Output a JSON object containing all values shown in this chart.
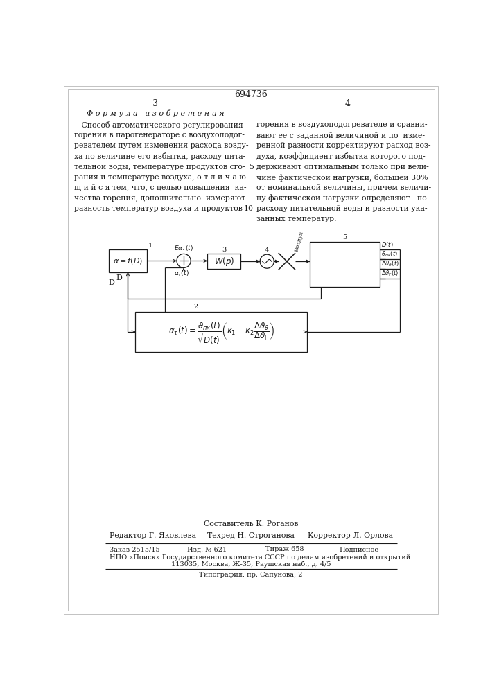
{
  "patent_number": "694736",
  "page_left": "3",
  "page_right": "4",
  "section_title": "Ф о р м у л а   и з о б р е т е н и я",
  "left_col": [
    "   Способ автоматического регулирования",
    "горения в парогенераторе с воздухоподог-",
    "ревателем путем изменения расхода возду-",
    "ха по величине его избытка, расходу пита-",
    "тельной воды, температуре продуктов сго-",
    "рания и температуре воздуха, о т л и ч а ю-",
    "щ и й с я тем, что, с целью повышения  ка-",
    "чества горения, дополнительно  измеряют",
    "разность температур воздуха и продуктов"
  ],
  "right_col": [
    "горения в воздухоподогревателе и сравни-",
    "вают ее с заданной величиной и по  изме-",
    "ренной разности корректируют расход воз-",
    "духа, коэффициент избытка которого под-",
    "держивают оптимальным только при вели-",
    "чине фактической нагрузки, большей 30%",
    "от номинальной величины, причем величи-",
    "ну фактической нагрузки определяют   по",
    "расходу питательной воды и разности ука-",
    "занных температур."
  ],
  "line5_row": 4,
  "line10_row": 8,
  "footer_compiler": "Составитель К. Роганов",
  "footer_editor": "Редактор Г. Яковлева",
  "footer_tech": "Техред Н. Строганова",
  "footer_corrector": "Корректор Л. Орлова",
  "footer_order": "Заказ 2515/15",
  "footer_izd": "Изд. № 621",
  "footer_tirazh": "Тираж 658",
  "footer_podp": "Подписное",
  "footer_npo": "НПО «Поиск» Государственного комитета СССР по делам изобретений и открытий",
  "footer_addr": "113035, Москва, Ж-35, Раушская наб., д. 4/5",
  "footer_tipo": "Типография, пр. Сапунова, 2",
  "bg_color": "#ffffff",
  "text_color": "#1a1a1a",
  "line_color": "#1a1a1a",
  "diagram_formula": "$\\alpha_{\\tau}(t)=\\frac{\\vartheta_{пк}(t)}{\\sqrt{D(t)}}\\left(\\kappa_{1}-\\kappa_{2}\\frac{\\Delta\\vartheta_{\\theta}}{\\Delta\\vartheta_{\\Gamma}}\\right)$"
}
